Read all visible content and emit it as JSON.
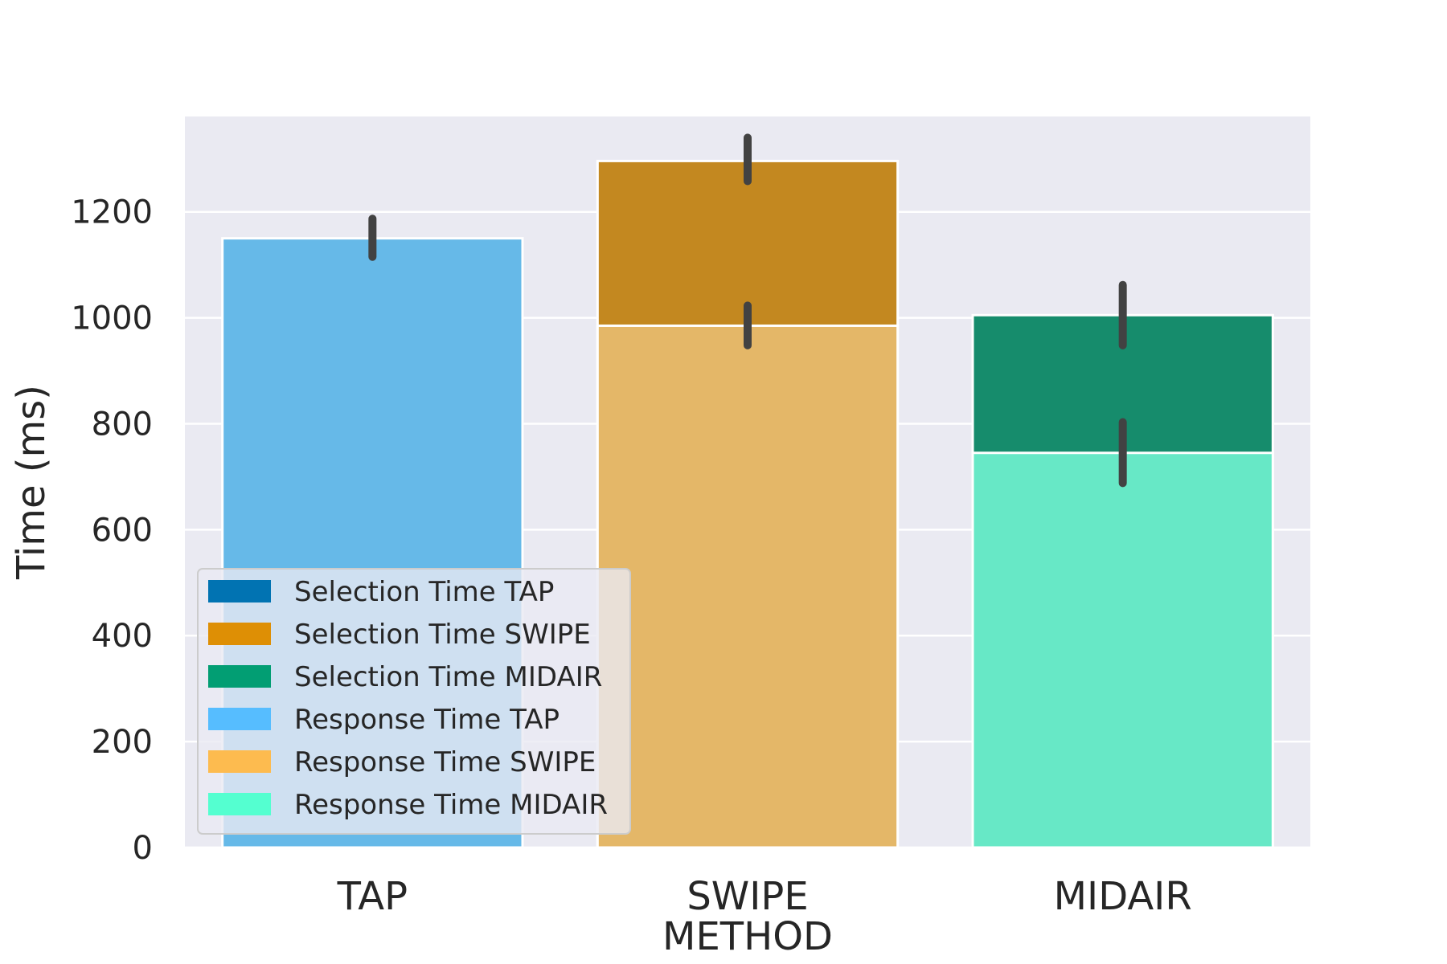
{
  "chart_data": {
    "type": "bar",
    "xlabel": "METHOD",
    "ylabel": "Time (ms)",
    "categories": [
      "TAP",
      "SWIPE",
      "MIDAIR"
    ],
    "ylim": [
      0,
      1380
    ],
    "yticks": [
      0,
      200,
      400,
      600,
      800,
      1000,
      1200
    ],
    "grid": true,
    "legend_position": "lower-left",
    "series": [
      {
        "name": "Selection Time TAP",
        "legend_color": "#0173b2",
        "values": [
          null,
          null,
          null
        ],
        "errors": [
          null,
          null,
          null
        ]
      },
      {
        "name": "Selection Time SWIPE",
        "legend_color": "#de8f05",
        "fill_color": "#c38820",
        "values": [
          null,
          1296,
          null
        ],
        "errors": [
          null,
          [
            1258,
            1340
          ],
          null
        ]
      },
      {
        "name": "Selection Time MIDAIR",
        "legend_color": "#029e73",
        "fill_color": "#168c6c",
        "values": [
          null,
          null,
          1005
        ],
        "errors": [
          null,
          null,
          [
            948,
            1062
          ]
        ]
      },
      {
        "name": "Response Time TAP",
        "legend_color": "#56bdff",
        "fill_color": "#66b9e8",
        "values": [
          1150,
          null,
          null
        ],
        "errors": [
          [
            1115,
            1187
          ],
          null,
          null
        ]
      },
      {
        "name": "Response Time SWIPE",
        "legend_color": "#fdbb4f",
        "fill_color": "#e4b768",
        "values": [
          null,
          985,
          null
        ],
        "errors": [
          null,
          [
            948,
            1023
          ],
          null
        ]
      },
      {
        "name": "Response Time MIDAIR",
        "legend_color": "#54ffd0",
        "fill_color": "#67e8c6",
        "values": [
          null,
          null,
          745
        ],
        "errors": [
          null,
          null,
          [
            688,
            803
          ]
        ]
      }
    ]
  }
}
